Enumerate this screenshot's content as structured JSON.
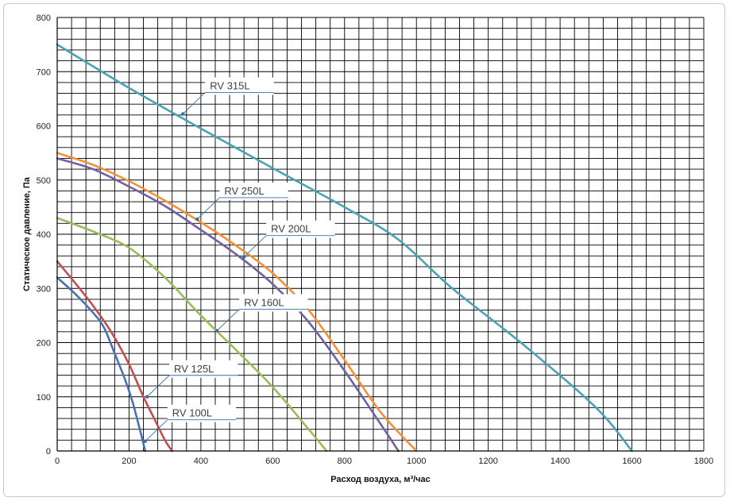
{
  "chart_data": {
    "type": "line",
    "xlabel": "Расход воздуха, м³/час",
    "ylabel": "Статическое давление, Па",
    "xlim": [
      0,
      1800
    ],
    "ylim": [
      0,
      800
    ],
    "x_ticks": [
      "0",
      "200",
      "400",
      "600",
      "800",
      "1000",
      "1200",
      "1400",
      "1600",
      "1800"
    ],
    "y_ticks": [
      "0",
      "100",
      "200",
      "300",
      "400",
      "500",
      "600",
      "700",
      "800"
    ],
    "x_minor_step": 40,
    "y_minor_step": 20,
    "grid": true,
    "legend": "callouts",
    "series": [
      {
        "name": "RV 100L",
        "color": "#4a72b0",
        "points": [
          [
            0,
            320
          ],
          [
            50,
            290
          ],
          [
            100,
            255
          ],
          [
            130,
            228
          ],
          [
            160,
            180
          ],
          [
            190,
            130
          ],
          [
            210,
            90
          ],
          [
            230,
            40
          ],
          [
            245,
            0
          ]
        ],
        "label_point": [
          245,
          18
        ]
      },
      {
        "name": "RV 125L",
        "color": "#c0504d",
        "points": [
          [
            0,
            350
          ],
          [
            50,
            310
          ],
          [
            100,
            268
          ],
          [
            150,
            220
          ],
          [
            200,
            160
          ],
          [
            240,
            100
          ],
          [
            270,
            60
          ],
          [
            300,
            20
          ],
          [
            320,
            0
          ]
        ],
        "label_point": [
          250,
          100
        ]
      },
      {
        "name": "RV 160L",
        "color": "#9bbb59",
        "points": [
          [
            0,
            430
          ],
          [
            100,
            405
          ],
          [
            200,
            375
          ],
          [
            300,
            320
          ],
          [
            400,
            250
          ],
          [
            500,
            185
          ],
          [
            600,
            118
          ],
          [
            700,
            40
          ],
          [
            750,
            0
          ]
        ],
        "label_point": [
          445,
          222
        ]
      },
      {
        "name": "RV 200L",
        "color": "#7060a0",
        "points": [
          [
            0,
            540
          ],
          [
            100,
            520
          ],
          [
            200,
            488
          ],
          [
            300,
            452
          ],
          [
            400,
            408
          ],
          [
            500,
            362
          ],
          [
            600,
            308
          ],
          [
            700,
            238
          ],
          [
            800,
            148
          ],
          [
            900,
            50
          ],
          [
            950,
            0
          ]
        ],
        "label_point": [
          520,
          358
        ]
      },
      {
        "name": "RV 250L",
        "color": "#f0923a",
        "points": [
          [
            0,
            550
          ],
          [
            100,
            528
          ],
          [
            200,
            498
          ],
          [
            300,
            462
          ],
          [
            400,
            422
          ],
          [
            500,
            378
          ],
          [
            600,
            328
          ],
          [
            700,
            260
          ],
          [
            800,
            168
          ],
          [
            900,
            72
          ],
          [
            1000,
            0
          ]
        ],
        "label_point": [
          390,
          428
        ]
      },
      {
        "name": "RV 315L",
        "color": "#4aa3b5",
        "points": [
          [
            0,
            750
          ],
          [
            200,
            670
          ],
          [
            400,
            595
          ],
          [
            600,
            522
          ],
          [
            800,
            450
          ],
          [
            950,
            390
          ],
          [
            1100,
            300
          ],
          [
            1300,
            195
          ],
          [
            1500,
            80
          ],
          [
            1600,
            0
          ]
        ],
        "label_point": [
          350,
          622
        ]
      }
    ]
  }
}
